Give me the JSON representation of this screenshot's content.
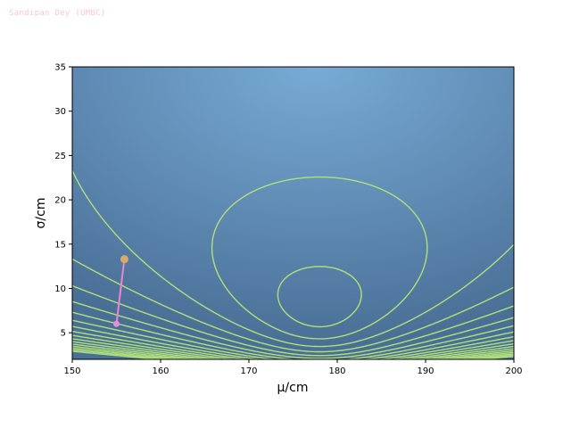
{
  "watermark": "Sandipan Dey (UMBC)",
  "colors": {
    "contour": "#b0e07a",
    "path": "#ee82d6",
    "start_marker": "#e08fd8",
    "end_marker": "#d9a96a",
    "bg_low": "#4a6f96",
    "bg_high": "#78abd6"
  },
  "chart_data": {
    "type": "contour",
    "xlabel": "μ/cm",
    "ylabel": "σ/cm",
    "xlim": [
      150,
      200
    ],
    "ylim": [
      2,
      35
    ],
    "xticks": [
      "150",
      "160",
      "170",
      "180",
      "190",
      "200"
    ],
    "yticks": [
      "5",
      "10",
      "15",
      "20",
      "25",
      "30",
      "35"
    ],
    "likelihood_peak": {
      "mu": 178,
      "sigma": 8
    },
    "optimization_path": [
      {
        "mu": 155.0,
        "sigma": 6.0
      },
      {
        "mu": 155.9,
        "sigma": 13.3
      }
    ]
  }
}
